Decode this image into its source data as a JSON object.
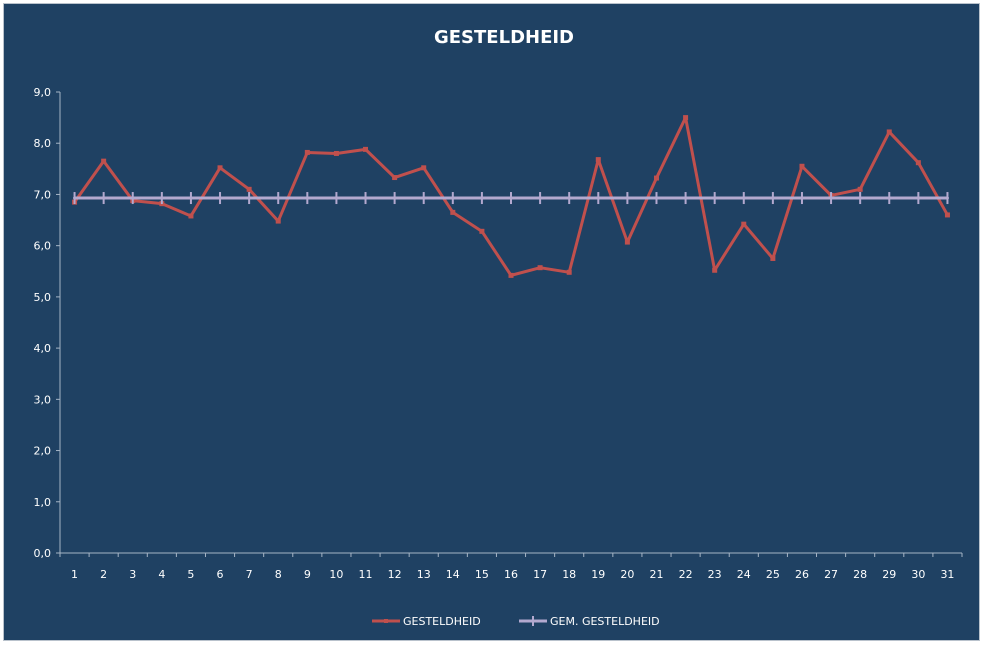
{
  "chart_data": {
    "type": "line",
    "title": "GESTELDHEID",
    "xlabel": "",
    "ylabel": "",
    "categories": [
      "1",
      "2",
      "3",
      "4",
      "5",
      "6",
      "7",
      "8",
      "9",
      "10",
      "11",
      "12",
      "13",
      "14",
      "15",
      "16",
      "17",
      "18",
      "19",
      "20",
      "21",
      "22",
      "23",
      "24",
      "25",
      "26",
      "27",
      "28",
      "29",
      "30",
      "31"
    ],
    "ylim": [
      0,
      9
    ],
    "yticks": [
      "0,0",
      "1,0",
      "2,0",
      "3,0",
      "4,0",
      "5,0",
      "6,0",
      "7,0",
      "8,0",
      "9,0"
    ],
    "grid": false,
    "legend_position": "bottom",
    "series": [
      {
        "name": "GESTELDHEID",
        "color": "#C0504D",
        "values": [
          6.85,
          7.65,
          6.88,
          6.82,
          6.58,
          7.52,
          7.1,
          6.48,
          7.82,
          7.8,
          7.88,
          7.33,
          7.52,
          6.65,
          6.28,
          5.42,
          5.57,
          5.48,
          7.68,
          6.07,
          7.32,
          8.5,
          5.52,
          6.42,
          5.75,
          7.55,
          6.98,
          7.1,
          8.22,
          7.62,
          6.6
        ]
      },
      {
        "name": "GEM. GESTELDHEID",
        "color": "#B3A9CF",
        "values": [
          6.93,
          6.93,
          6.93,
          6.93,
          6.93,
          6.93,
          6.93,
          6.93,
          6.93,
          6.93,
          6.93,
          6.93,
          6.93,
          6.93,
          6.93,
          6.93,
          6.93,
          6.93,
          6.93,
          6.93,
          6.93,
          6.93,
          6.93,
          6.93,
          6.93,
          6.93,
          6.93,
          6.93,
          6.93,
          6.93,
          6.93
        ]
      }
    ],
    "colors": {
      "background": "#1F4163",
      "axis": "#A6B5C6",
      "text": "#FFFFFF"
    }
  }
}
